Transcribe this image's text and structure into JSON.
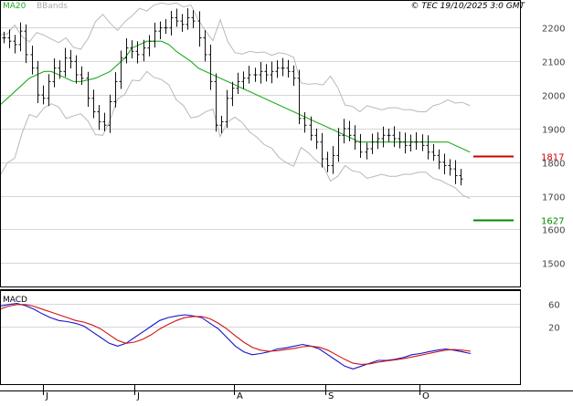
{
  "header": {
    "legend_ma": "MA20",
    "legend_bands": "BBands",
    "copyright": "© TEC 19/10/2025 3:0 GMT"
  },
  "colors": {
    "ma": "#21aa21",
    "bands": "#b9b9b9",
    "bars": "#111111",
    "resistance": "#cc0000",
    "support": "#008800",
    "macd": "#1515cc",
    "signal": "#cc1515",
    "grid": "#d6d6d6"
  },
  "chart_data": [
    {
      "type": "ohlc",
      "title": "",
      "xlabel": "",
      "ylabel": "",
      "ylim": [
        1430,
        2280
      ],
      "grid": true,
      "legend": "top-left",
      "x_ticks": [
        "J",
        "J",
        "A",
        "S",
        "O"
      ],
      "y_ticks": [
        1500,
        1600,
        1700,
        1800,
        1900,
        2000,
        2100,
        2200
      ],
      "closes": [
        2170,
        2160,
        2150,
        2190,
        2120,
        2080,
        2000,
        1990,
        2040,
        2080,
        2070,
        2110,
        2100,
        2060,
        2050,
        1990,
        1950,
        1920,
        1910,
        1980,
        2040,
        2110,
        2140,
        2130,
        2120,
        2140,
        2160,
        2190,
        2200,
        2200,
        2230,
        2220,
        2210,
        2230,
        2220,
        2170,
        2120,
        2040,
        1910,
        1920,
        1990,
        2020,
        2040,
        2050,
        2060,
        2060,
        2070,
        2060,
        2070,
        2080,
        2080,
        2070,
        2050,
        1930,
        1910,
        1880,
        1860,
        1810,
        1790,
        1820,
        1880,
        1900,
        1880,
        1860,
        1830,
        1840,
        1860,
        1870,
        1880,
        1880,
        1870,
        1860,
        1850,
        1860,
        1860,
        1850,
        1830,
        1820,
        1800,
        1790,
        1780,
        1760,
        1750
      ],
      "series": [
        {
          "name": "MA20",
          "values": [
            1970,
            1990,
            2010,
            2030,
            2050,
            2060,
            2070,
            2070,
            2060,
            2050,
            2040,
            2040,
            2045,
            2050,
            2060,
            2070,
            2090,
            2110,
            2140,
            2150,
            2160,
            2160,
            2160,
            2150,
            2130,
            2115,
            2100,
            2080,
            2070,
            2060,
            2050,
            2040,
            2030,
            2020,
            2010,
            2000,
            1990,
            1980,
            1970,
            1960,
            1950,
            1940,
            1930,
            1920,
            1910,
            1900,
            1890,
            1880,
            1870,
            1860,
            1860,
            1860,
            1860,
            1860,
            1860,
            1860,
            1860,
            1860,
            1860,
            1860,
            1860,
            1860,
            1850,
            1840,
            1830
          ]
        },
        {
          "name": "BBands upper",
          "values": []
        },
        {
          "name": "BBands lower",
          "values": []
        }
      ],
      "levels": [
        {
          "label": "1817",
          "value": 1817
        },
        {
          "label": "1627",
          "value": 1627
        }
      ]
    },
    {
      "type": "line",
      "title": "MACD",
      "ylim": [
        -80,
        80
      ],
      "y_ticks": [
        20,
        60
      ],
      "grid": true,
      "series": [
        {
          "name": "MACD",
          "values": [
            55,
            58,
            60,
            56,
            50,
            42,
            35,
            30,
            28,
            25,
            20,
            10,
            0,
            -10,
            -15,
            -10,
            0,
            10,
            20,
            30,
            35,
            38,
            40,
            38,
            35,
            25,
            15,
            0,
            -15,
            -25,
            -30,
            -28,
            -25,
            -20,
            -18,
            -15,
            -12,
            -15,
            -20,
            -30,
            -40,
            -50,
            -55,
            -50,
            -45,
            -40,
            -40,
            -38,
            -35,
            -30,
            -28,
            -25,
            -22,
            -20,
            -22,
            -25,
            -28
          ]
        },
        {
          "name": "Signal",
          "values": [
            50,
            55,
            58,
            58,
            55,
            50,
            45,
            40,
            35,
            30,
            27,
            22,
            15,
            5,
            -5,
            -10,
            -8,
            -3,
            5,
            15,
            23,
            30,
            35,
            37,
            37,
            33,
            25,
            15,
            3,
            -8,
            -17,
            -22,
            -24,
            -23,
            -21,
            -19,
            -16,
            -15,
            -17,
            -22,
            -30,
            -38,
            -45,
            -47,
            -46,
            -43,
            -41,
            -39,
            -37,
            -34,
            -31,
            -28,
            -25,
            -22,
            -21,
            -22,
            -24
          ]
        }
      ]
    }
  ]
}
